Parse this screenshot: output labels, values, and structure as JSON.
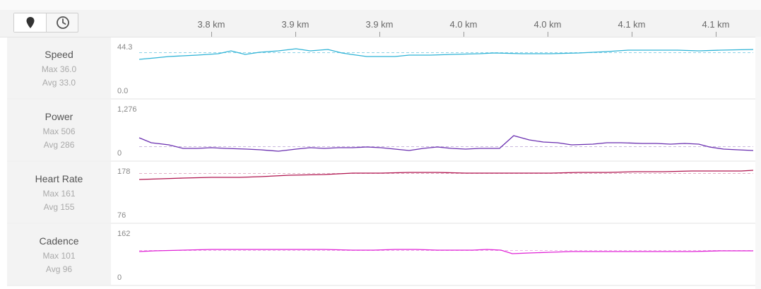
{
  "toolbar": {
    "location_icon": "map-pin-icon",
    "time_icon": "clock-icon"
  },
  "distance_axis": {
    "labels": [
      "3.8 km",
      "3.9 km",
      "3.9 km",
      "4.0 km",
      "4.0 km",
      "4.1 km",
      "4.1 km"
    ]
  },
  "metrics": [
    {
      "name": "Speed",
      "max": "Max 36.0",
      "avg": "Avg 33.0",
      "y_top": "44.3",
      "y_bottom": "0.0",
      "color": "#2eb3d6",
      "avg_color": "#8fd3e8"
    },
    {
      "name": "Power",
      "max": "Max 506",
      "avg": "Avg 286",
      "y_top": "1,276",
      "y_bottom": "0",
      "color": "#6a2fb0",
      "avg_color": "#c9b8dd"
    },
    {
      "name": "Heart Rate",
      "max": "Max 161",
      "avg": "Avg 155",
      "y_top": "178",
      "y_bottom": "76",
      "color": "#b0154f",
      "avg_color": "#e3b0c5"
    },
    {
      "name": "Cadence",
      "max": "Max 101",
      "avg": "Avg 96",
      "y_top": "162",
      "y_bottom": "0",
      "color": "#e024d6",
      "avg_color": "#f0b0ea"
    }
  ]
}
